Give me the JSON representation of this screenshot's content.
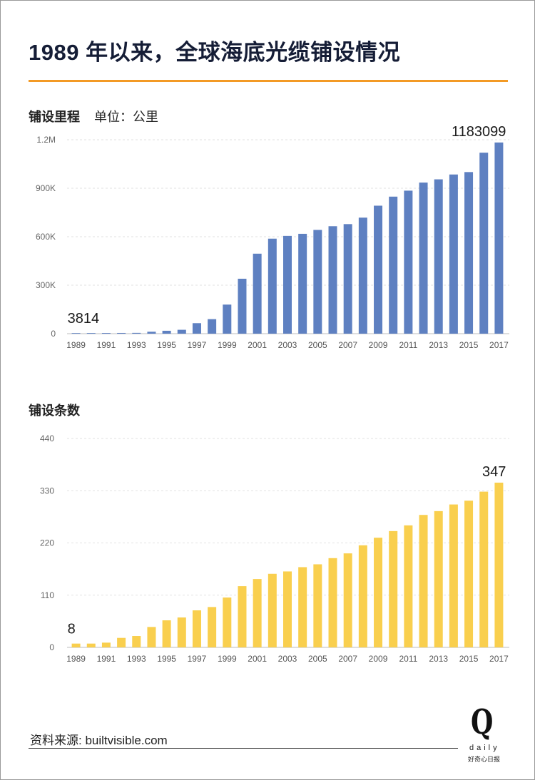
{
  "title": "1989 年以来，全球海底光缆铺设情况",
  "colors": {
    "accent": "#f39a25",
    "bar_length": "#5e80c1",
    "bar_count": "#f9cf4e",
    "title": "#151d36"
  },
  "length_section": {
    "heading": "铺设里程",
    "unit": "单位：公里"
  },
  "count_section": {
    "heading": "铺设条数"
  },
  "chart_data": [
    {
      "type": "bar",
      "title": "铺设里程",
      "ylabel": "单位：公里",
      "categories": [
        "1989",
        "1990",
        "1991",
        "1992",
        "1993",
        "1994",
        "1995",
        "1996",
        "1997",
        "1998",
        "1999",
        "2000",
        "2001",
        "2002",
        "2003",
        "2004",
        "2005",
        "2006",
        "2007",
        "2008",
        "2009",
        "2010",
        "2011",
        "2012",
        "2013",
        "2014",
        "2015",
        "2016",
        "2017"
      ],
      "values": [
        3814,
        4000,
        4200,
        4500,
        5000,
        12000,
        18000,
        24000,
        65000,
        90000,
        180000,
        340000,
        495000,
        588000,
        605000,
        618000,
        642000,
        665000,
        678000,
        718000,
        792000,
        848000,
        885000,
        935000,
        955000,
        985000,
        1000000,
        1120000,
        1183099
      ],
      "ylim": [
        0,
        1200000
      ],
      "yticks": [
        0,
        300000,
        600000,
        900000,
        1200000
      ],
      "ytick_labels": [
        "0",
        "300K",
        "600K",
        "900K",
        "1.2M"
      ],
      "xtick_labels": [
        "1989",
        "1991",
        "1993",
        "1995",
        "1997",
        "1999",
        "2001",
        "2003",
        "2005",
        "2007",
        "2009",
        "2011",
        "2013",
        "2015",
        "2017"
      ],
      "annotations": [
        {
          "text": "3814",
          "category": "1989"
        },
        {
          "text": "1183099",
          "category": "2017"
        }
      ],
      "grid": true
    },
    {
      "type": "bar",
      "title": "铺设条数",
      "ylabel": "",
      "categories": [
        "1989",
        "1990",
        "1991",
        "1992",
        "1993",
        "1994",
        "1995",
        "1996",
        "1997",
        "1998",
        "1999",
        "2000",
        "2001",
        "2002",
        "2003",
        "2004",
        "2005",
        "2006",
        "2007",
        "2008",
        "2009",
        "2010",
        "2011",
        "2012",
        "2013",
        "2014",
        "2015",
        "2016",
        "2017"
      ],
      "values": [
        8,
        8,
        10,
        20,
        24,
        43,
        57,
        63,
        78,
        85,
        105,
        129,
        144,
        155,
        160,
        169,
        175,
        188,
        198,
        215,
        231,
        245,
        257,
        279,
        287,
        301,
        309,
        328,
        347
      ],
      "ylim": [
        0,
        440
      ],
      "yticks": [
        0,
        110,
        220,
        330,
        440
      ],
      "ytick_labels": [
        "0",
        "110",
        "220",
        "330",
        "440"
      ],
      "xtick_labels": [
        "1989",
        "1991",
        "1993",
        "1995",
        "1997",
        "1999",
        "2001",
        "2003",
        "2005",
        "2007",
        "2009",
        "2011",
        "2013",
        "2015",
        "2017"
      ],
      "annotations": [
        {
          "text": "8",
          "category": "1989"
        },
        {
          "text": "347",
          "category": "2017"
        }
      ],
      "grid": true
    }
  ],
  "source": "资料来源: builtvisible.com",
  "logo": {
    "letter": "Q",
    "word": "daily",
    "tagline": "好奇心日报"
  }
}
